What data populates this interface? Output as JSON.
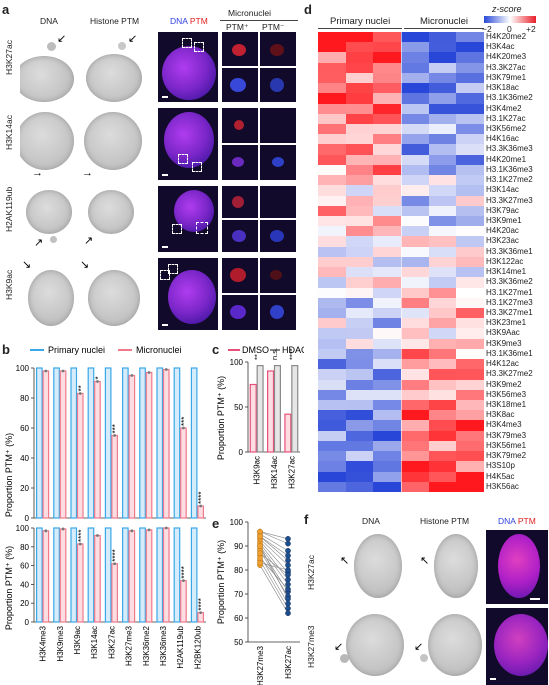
{
  "panel_labels": {
    "a": "a",
    "b": "b",
    "c": "c",
    "d": "d",
    "e": "e",
    "f": "f"
  },
  "panel_a": {
    "col_headers": [
      "DNA",
      "Histone PTM"
    ],
    "merge_header_dna": "DNA",
    "merge_header_ptm": "PTM",
    "micronuclei_header": "Micronuclei",
    "ptm_plus": "PTM⁺",
    "ptm_minus": "PTM⁻",
    "rows": [
      "H3K27ac",
      "H3K14ac",
      "H2AK119ub",
      "H3K9ac"
    ],
    "roi_labels": [
      "1",
      "2"
    ]
  },
  "panel_b": {
    "legend_primary": "Primary nuclei",
    "legend_micro": "Micronuclei",
    "ylabel": "Proportion PTM⁺ (%)",
    "yticks": [
      "0",
      "20",
      "40",
      "60",
      "80",
      "100"
    ],
    "colors": {
      "primary": "#3aa8e8",
      "micro": "#f07a8c"
    }
  },
  "panel_c": {
    "legend_dmso": "DMSO",
    "legend_hdaci": "HDACi",
    "ylabel": "Proportion PTM⁺ (%)",
    "yticks": [
      "0",
      "50",
      "100"
    ],
    "colors": {
      "dmso": "#e8507a",
      "hdaci": "#8a8a8a"
    }
  },
  "panel_d": {
    "col_groups": [
      "Primary nuclei",
      "Micronuclei"
    ],
    "colorbar_title": "z-score",
    "colorbar_ticks": [
      "−2",
      "0",
      "+2"
    ],
    "rows": [
      "H4K20me2",
      "H3K4ac",
      "H4K20me3",
      "H3.3K27ac",
      "H3K79me1",
      "H3K18ac",
      "H3.1K36me2",
      "H3K4me2",
      "H3.1K27ac",
      "H3K56me2",
      "H4K16ac",
      "H3.3K36me3",
      "H4K20me1",
      "H3.1K36me3",
      "H3.1K27me2",
      "H3K14ac",
      "H3.3K27me3",
      "H3K79ac",
      "H3K9me1",
      "H4K20ac",
      "H3K23ac",
      "H3.3K36me1",
      "H3K122ac",
      "H3K14me1",
      "H3.3K36me2",
      "H3.1K27me1",
      "H3.1K27me3",
      "H3.3K27me1",
      "H3K23me1",
      "H3K9Aac",
      "H3K9me3",
      "H3.1K36me1",
      "H4K12ac",
      "H3.3K27me2",
      "H3K9me2",
      "H3K56me3",
      "H3K18me1",
      "H3K8ac",
      "H3K4me3",
      "H3K79me3",
      "H3K56me1",
      "H3K79me2",
      "H3S10p",
      "H4K5ac",
      "H3K56ac"
    ]
  },
  "panel_e": {
    "ylabel": "Proportion PTM⁺ (%)",
    "yticks": [
      "50",
      "60",
      "70",
      "80",
      "90",
      "100"
    ],
    "categories": [
      "H3K27me3",
      "H3K27ac"
    ],
    "colors": {
      "left": "#f0a030",
      "right": "#1f4e8c"
    }
  },
  "panel_f": {
    "col_headers": [
      "DNA",
      "Histone PTM"
    ],
    "merge_header_dna": "DNA",
    "merge_header_ptm": "PTM",
    "rows": [
      "H3K27ac",
      "H3K27me3"
    ]
  },
  "chart_data": [
    {
      "panel": "b-top",
      "type": "bar",
      "categories": [
        "H3K4me3",
        "H3K9me3",
        "H3K9ac",
        "H3K14ac",
        "H3K27ac",
        "H3K27me3",
        "H3K36me2",
        "H3K36me3",
        "H2AK119ub",
        "H2BK120ub"
      ],
      "series": [
        {
          "name": "Primary nuclei",
          "values": [
            100,
            100,
            100,
            100,
            100,
            100,
            100,
            100,
            100,
            100
          ]
        },
        {
          "name": "Micronuclei",
          "values": [
            98,
            98,
            83,
            91,
            55,
            95,
            97,
            99,
            60,
            8
          ]
        }
      ],
      "significance": [
        "",
        "",
        "**",
        "*",
        "***",
        "",
        "",
        "",
        "***",
        "****"
      ],
      "ylim": [
        0,
        100
      ]
    },
    {
      "panel": "b-bottom",
      "type": "bar",
      "categories": [
        "H3K4me3",
        "H3K9me3",
        "H3K9ac",
        "H3K14ac",
        "H3K27ac",
        "H3K27me3",
        "H3K36me2",
        "H3K36me3",
        "H2AK119ub",
        "H2BK120ub"
      ],
      "series": [
        {
          "name": "Primary nuclei",
          "values": [
            100,
            100,
            100,
            100,
            100,
            100,
            100,
            100,
            100,
            100
          ]
        },
        {
          "name": "Micronuclei",
          "values": [
            97,
            99,
            83,
            92,
            62,
            97,
            98,
            100,
            44,
            10
          ]
        }
      ],
      "significance": [
        "",
        "",
        "****",
        "",
        "****",
        "",
        "",
        "",
        "****",
        "****"
      ],
      "ylim": [
        0,
        100
      ]
    },
    {
      "panel": "c",
      "type": "bar",
      "categories": [
        "H3K9ac",
        "H3K14ac",
        "H3K27ac"
      ],
      "series": [
        {
          "name": "DMSO",
          "values": [
            75,
            90,
            42
          ]
        },
        {
          "name": "HDACi",
          "values": [
            96,
            96,
            96
          ]
        }
      ],
      "significance": [
        "**",
        "n.s.",
        "****"
      ],
      "ylim": [
        0,
        100
      ]
    },
    {
      "panel": "e",
      "type": "scatter",
      "categories": [
        "H3K27me3",
        "H3K27ac"
      ],
      "pairs": [
        [
          96,
          91
        ],
        [
          95,
          88
        ],
        [
          94,
          86
        ],
        [
          93,
          82
        ],
        [
          92,
          79
        ],
        [
          91,
          76
        ],
        [
          90,
          74
        ],
        [
          89,
          71
        ],
        [
          88,
          69
        ],
        [
          86,
          66
        ],
        [
          84,
          64
        ],
        [
          82,
          62
        ],
        [
          96,
          93
        ],
        [
          94,
          84
        ],
        [
          90,
          68
        ],
        [
          87,
          78
        ],
        [
          85,
          72
        ],
        [
          83,
          80
        ]
      ],
      "ylim": [
        50,
        100
      ]
    }
  ]
}
